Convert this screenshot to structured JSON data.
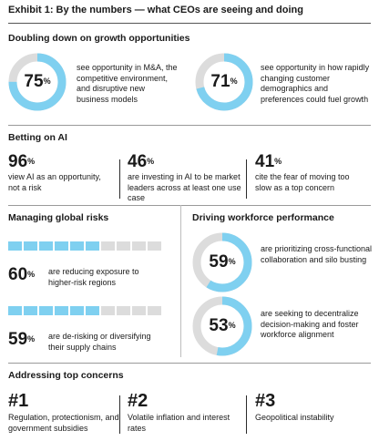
{
  "title": "Exhibit 1: By the numbers — what CEOs are seeing and doing",
  "colors": {
    "accent": "#7fd0f0",
    "track": "#dcdcdc"
  },
  "growth": {
    "title": "Doubling down on growth opportunities",
    "items": [
      {
        "value": "75",
        "unit": "%",
        "fraction": 0.75,
        "text": "see opportunity in M&A, the competitive environment, and disruptive new business models"
      },
      {
        "value": "71",
        "unit": "%",
        "fraction": 0.71,
        "text": "see opportunity in how rapidly changing customer demographics and preferences could fuel growth"
      }
    ]
  },
  "ai": {
    "title": "Betting on AI",
    "items": [
      {
        "value": "96",
        "unit": "%",
        "text": "view AI as an opportunity, not a risk"
      },
      {
        "value": "46",
        "unit": "%",
        "text": "are investing in AI to be market leaders across at least one use case"
      },
      {
        "value": "41",
        "unit": "%",
        "text": "cite the fear of moving too slow as a top concern"
      }
    ]
  },
  "risks": {
    "title": "Managing global risks",
    "items": [
      {
        "value": "60",
        "unit": "%",
        "fraction": 0.6,
        "text": "are reducing exposure to higher-risk regions"
      },
      {
        "value": "59",
        "unit": "%",
        "fraction": 0.59,
        "text": "are de-risking or diversifying their supply chains"
      }
    ]
  },
  "workforce": {
    "title": "Driving workforce performance",
    "items": [
      {
        "value": "59",
        "unit": "%",
        "fraction": 0.59,
        "text": "are prioritizing cross-functional collaboration and silo busting"
      },
      {
        "value": "53",
        "unit": "%",
        "fraction": 0.53,
        "text": "are seeking to decentralize decision-making and foster workforce alignment"
      }
    ]
  },
  "concerns": {
    "title": "Addressing top concerns",
    "items": [
      {
        "rank": "#1",
        "text": "Regulation, protectionism, and government subsidies"
      },
      {
        "rank": "#2",
        "text": "Volatile inflation and interest rates"
      },
      {
        "rank": "#3",
        "text": "Geopolitical instability"
      }
    ]
  }
}
